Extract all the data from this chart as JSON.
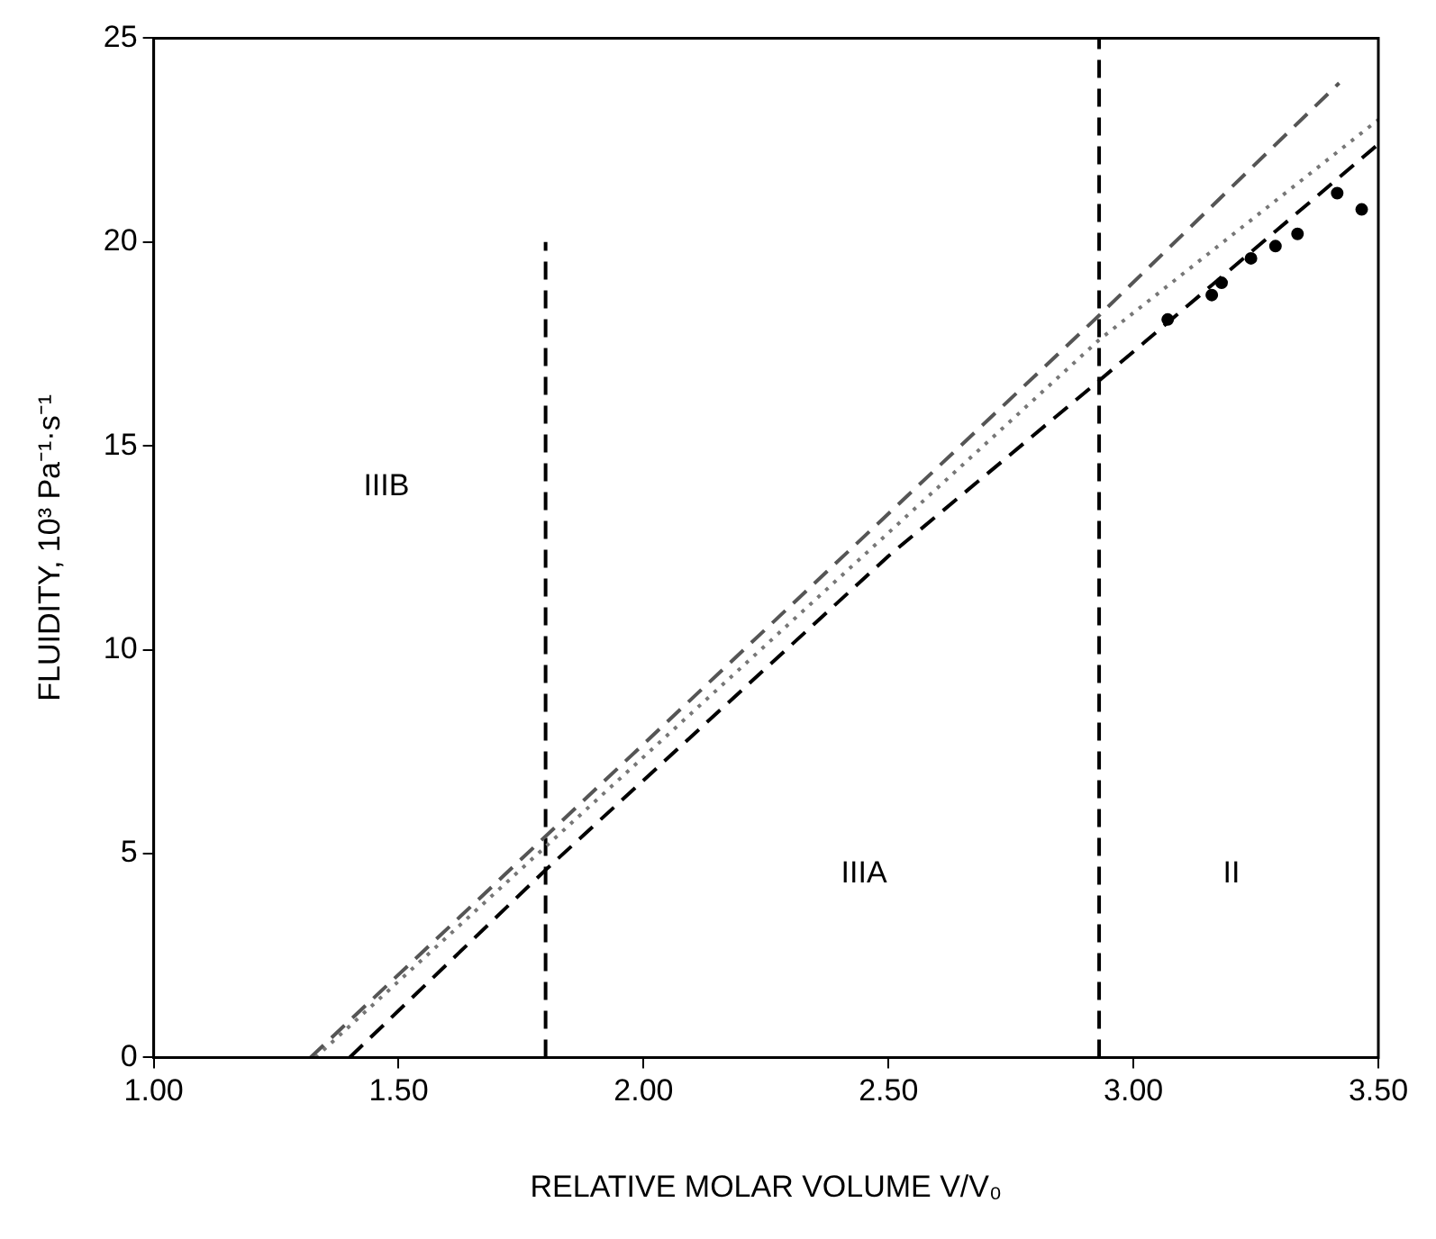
{
  "chart_data": {
    "type": "line",
    "xlabel": "RELATIVE MOLAR VOLUME V/V₀",
    "ylabel": "FLUIDITY, 10³ Pa⁻¹·s⁻¹",
    "xlim": [
      1.0,
      3.5
    ],
    "ylim": [
      0,
      25
    ],
    "xticks": [
      {
        "value": 1.0,
        "label": "1.00"
      },
      {
        "value": 1.5,
        "label": "1.50"
      },
      {
        "value": 2.0,
        "label": "2.00"
      },
      {
        "value": 2.5,
        "label": "2.50"
      },
      {
        "value": 3.0,
        "label": "3.00"
      },
      {
        "value": 3.5,
        "label": "3.50"
      }
    ],
    "yticks": [
      0,
      5,
      10,
      15,
      20,
      25
    ],
    "grid": false,
    "legend": false,
    "series": [
      {
        "color": "#555555",
        "line_style": "dashed",
        "x": [
          1.32,
          2.93,
          3.42
        ],
        "values": [
          0,
          18.2,
          23.9
        ]
      },
      {
        "color": "#777777",
        "line_style": "dotted",
        "x": [
          1.33,
          2.93,
          3.5
        ],
        "values": [
          0,
          17.6,
          23.0
        ]
      },
      {
        "color": "#000000",
        "line_style": "dashed",
        "x": [
          1.4,
          1.8,
          2.5,
          2.93,
          3.5
        ],
        "values": [
          0,
          4.6,
          12.3,
          16.6,
          22.4
        ]
      },
      {
        "type": "scatter",
        "color": "#000000",
        "x": [
          3.07,
          3.16,
          3.18,
          3.24,
          3.29,
          3.335,
          3.416,
          3.466
        ],
        "values": [
          18.1,
          18.7,
          19.0,
          19.6,
          19.9,
          20.2,
          21.2,
          20.8
        ]
      },
      {
        "type": "line",
        "color": "#000000",
        "line_style": "dashed",
        "x": [
          1.8,
          1.8
        ],
        "values": [
          0,
          20
        ]
      },
      {
        "type": "line",
        "color": "#000000",
        "line_style": "dashed",
        "x": [
          2.93,
          2.93
        ],
        "values": [
          0,
          25
        ]
      }
    ],
    "annotations": [
      "IIIB",
      "IIIA",
      "II"
    ]
  }
}
